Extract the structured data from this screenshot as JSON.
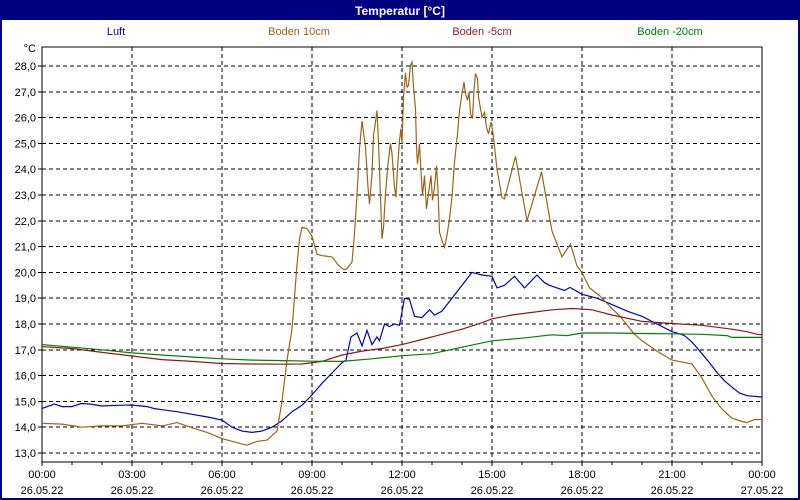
{
  "window": {
    "title": "Temperatur [°C]"
  },
  "colors": {
    "titlebar_bg": "#000080",
    "titlebar_text": "#ffffff",
    "window_border": "#000080",
    "plot_border": "#000000",
    "grid": "#000000",
    "background": "#ffffff"
  },
  "chart_data": {
    "type": "line",
    "title": "Temperatur [°C]",
    "grid": "dashed",
    "legend_position": "top",
    "y_axis": {
      "unit": "°C",
      "min": 13.0,
      "max": 28.0,
      "step": 1.0,
      "tick_labels": [
        "28,0",
        "27,0",
        "26,0",
        "25,0",
        "24,0",
        "23,0",
        "22,0",
        "21,0",
        "20,0",
        "19,0",
        "18,0",
        "17,0",
        "16,0",
        "15,0",
        "14,0",
        "13,0"
      ]
    },
    "x_axis": {
      "end_minutes": 1440,
      "major_step_minutes": 180,
      "minor_step_minutes": 60,
      "major_ticks": [
        {
          "time": "00:00",
          "date": "26.05.22"
        },
        {
          "time": "03:00",
          "date": "26.05.22"
        },
        {
          "time": "06:00",
          "date": "26.05.22"
        },
        {
          "time": "09:00",
          "date": "26.05.22"
        },
        {
          "time": "12:00",
          "date": "26.05.22"
        },
        {
          "time": "15:00",
          "date": "26.05.22"
        },
        {
          "time": "18:00",
          "date": "26.05.22"
        },
        {
          "time": "21:00",
          "date": "26.05.22"
        },
        {
          "time": "00:00",
          "date": "27.05.22"
        }
      ]
    },
    "series": [
      {
        "name": "Luft",
        "color": "#0000cc",
        "points": [
          [
            0,
            14.73
          ],
          [
            25,
            14.9
          ],
          [
            40,
            14.8
          ],
          [
            60,
            14.8
          ],
          [
            78,
            14.92
          ],
          [
            95,
            14.9
          ],
          [
            120,
            14.82
          ],
          [
            150,
            14.85
          ],
          [
            180,
            14.86
          ],
          [
            210,
            14.8
          ],
          [
            225,
            14.72
          ],
          [
            240,
            14.68
          ],
          [
            270,
            14.6
          ],
          [
            300,
            14.5
          ],
          [
            330,
            14.4
          ],
          [
            360,
            14.28
          ],
          [
            380,
            14.0
          ],
          [
            400,
            13.85
          ],
          [
            420,
            13.8
          ],
          [
            440,
            13.85
          ],
          [
            460,
            14.0
          ],
          [
            480,
            14.25
          ],
          [
            500,
            14.6
          ],
          [
            520,
            14.85
          ],
          [
            540,
            15.25
          ],
          [
            560,
            15.7
          ],
          [
            580,
            16.1
          ],
          [
            600,
            16.5
          ],
          [
            608,
            16.6
          ],
          [
            618,
            17.5
          ],
          [
            630,
            17.65
          ],
          [
            640,
            17.15
          ],
          [
            650,
            17.75
          ],
          [
            660,
            17.2
          ],
          [
            670,
            17.5
          ],
          [
            675,
            17.35
          ],
          [
            685,
            18.0
          ],
          [
            695,
            17.9
          ],
          [
            705,
            18.0
          ],
          [
            715,
            17.95
          ],
          [
            725,
            19.0
          ],
          [
            735,
            18.95
          ],
          [
            745,
            18.3
          ],
          [
            760,
            18.25
          ],
          [
            775,
            18.55
          ],
          [
            785,
            18.35
          ],
          [
            800,
            18.5
          ],
          [
            820,
            19.0
          ],
          [
            840,
            19.5
          ],
          [
            860,
            20.0
          ],
          [
            880,
            19.9
          ],
          [
            900,
            19.85
          ],
          [
            910,
            19.4
          ],
          [
            925,
            19.5
          ],
          [
            945,
            19.85
          ],
          [
            965,
            19.4
          ],
          [
            990,
            19.9
          ],
          [
            1005,
            19.6
          ],
          [
            1015,
            19.5
          ],
          [
            1027,
            19.42
          ],
          [
            1045,
            19.3
          ],
          [
            1056,
            19.42
          ],
          [
            1080,
            19.15
          ],
          [
            1110,
            19.0
          ],
          [
            1140,
            18.75
          ],
          [
            1170,
            18.5
          ],
          [
            1200,
            18.3
          ],
          [
            1230,
            18.0
          ],
          [
            1260,
            17.7
          ],
          [
            1275,
            17.62
          ],
          [
            1285,
            17.55
          ],
          [
            1300,
            17.3
          ],
          [
            1320,
            16.85
          ],
          [
            1335,
            16.5
          ],
          [
            1350,
            16.12
          ],
          [
            1365,
            15.8
          ],
          [
            1380,
            15.55
          ],
          [
            1395,
            15.32
          ],
          [
            1410,
            15.22
          ],
          [
            1440,
            15.17
          ]
        ]
      },
      {
        "name": "Boden 10cm",
        "color": "#996619",
        "points": [
          [
            0,
            14.15
          ],
          [
            40,
            14.12
          ],
          [
            80,
            14.0
          ],
          [
            120,
            14.05
          ],
          [
            160,
            14.05
          ],
          [
            200,
            14.15
          ],
          [
            240,
            14.05
          ],
          [
            270,
            14.18
          ],
          [
            300,
            13.98
          ],
          [
            330,
            13.8
          ],
          [
            360,
            13.56
          ],
          [
            390,
            13.4
          ],
          [
            410,
            13.3
          ],
          [
            430,
            13.45
          ],
          [
            450,
            13.5
          ],
          [
            470,
            13.85
          ],
          [
            480,
            15.0
          ],
          [
            490,
            16.6
          ],
          [
            500,
            17.8
          ],
          [
            510,
            20.3
          ],
          [
            515,
            21.3
          ],
          [
            520,
            21.75
          ],
          [
            530,
            21.7
          ],
          [
            540,
            21.4
          ],
          [
            550,
            20.7
          ],
          [
            560,
            20.65
          ],
          [
            580,
            20.6
          ],
          [
            590,
            20.35
          ],
          [
            600,
            20.15
          ],
          [
            605,
            20.1
          ],
          [
            610,
            20.15
          ],
          [
            620,
            20.4
          ],
          [
            625,
            21.5
          ],
          [
            630,
            23.0
          ],
          [
            635,
            24.8
          ],
          [
            640,
            25.87
          ],
          [
            647,
            24.86
          ],
          [
            652,
            23.3
          ],
          [
            655,
            22.65
          ],
          [
            660,
            23.82
          ],
          [
            663,
            25.31
          ],
          [
            667,
            25.83
          ],
          [
            670,
            26.28
          ],
          [
            673,
            25.05
          ],
          [
            677,
            22.92
          ],
          [
            680,
            21.3
          ],
          [
            683,
            21.75
          ],
          [
            687,
            23.05
          ],
          [
            692,
            24.21
          ],
          [
            697,
            25.0
          ],
          [
            700,
            24.6
          ],
          [
            705,
            23.3
          ],
          [
            708,
            22.92
          ],
          [
            711,
            24.02
          ],
          [
            715,
            25.12
          ],
          [
            718,
            25.57
          ],
          [
            720,
            24.98
          ],
          [
            723,
            26.8
          ],
          [
            727,
            27.73
          ],
          [
            730,
            27.18
          ],
          [
            733,
            27.25
          ],
          [
            737,
            28.03
          ],
          [
            740,
            28.15
          ],
          [
            743,
            27.18
          ],
          [
            747,
            26.34
          ],
          [
            749,
            24.86
          ],
          [
            751,
            24.21
          ],
          [
            755,
            24.98
          ],
          [
            759,
            23.56
          ],
          [
            761,
            22.98
          ],
          [
            765,
            23.76
          ],
          [
            769,
            22.46
          ],
          [
            773,
            23.05
          ],
          [
            778,
            23.76
          ],
          [
            781,
            22.79
          ],
          [
            785,
            23.3
          ],
          [
            789,
            24.14
          ],
          [
            792,
            23.18
          ],
          [
            795,
            21.56
          ],
          [
            800,
            21.24
          ],
          [
            805,
            20.98
          ],
          [
            810,
            21.43
          ],
          [
            815,
            22.08
          ],
          [
            820,
            22.92
          ],
          [
            825,
            24.27
          ],
          [
            831,
            25.37
          ],
          [
            835,
            26.28
          ],
          [
            840,
            26.93
          ],
          [
            844,
            27.38
          ],
          [
            847,
            26.93
          ],
          [
            851,
            26.67
          ],
          [
            854,
            27.0
          ],
          [
            857,
            26.15
          ],
          [
            861,
            25.96
          ],
          [
            864,
            27.06
          ],
          [
            867,
            27.71
          ],
          [
            871,
            27.51
          ],
          [
            873,
            26.8
          ],
          [
            877,
            26.34
          ],
          [
            880,
            26.02
          ],
          [
            885,
            26.21
          ],
          [
            889,
            25.63
          ],
          [
            893,
            25.37
          ],
          [
            898,
            25.83
          ],
          [
            902,
            25.4
          ],
          [
            910,
            24.0
          ],
          [
            920,
            22.9
          ],
          [
            925,
            22.85
          ],
          [
            947,
            24.5
          ],
          [
            970,
            22.0
          ],
          [
            999,
            23.9
          ],
          [
            1020,
            21.6
          ],
          [
            1040,
            20.6
          ],
          [
            1057,
            21.1
          ],
          [
            1070,
            20.25
          ],
          [
            1080,
            20.0
          ],
          [
            1095,
            19.4
          ],
          [
            1115,
            19.1
          ],
          [
            1140,
            18.6
          ],
          [
            1156,
            18.3
          ],
          [
            1185,
            17.6
          ],
          [
            1200,
            17.35
          ],
          [
            1230,
            16.95
          ],
          [
            1260,
            16.6
          ],
          [
            1300,
            16.45
          ],
          [
            1320,
            15.9
          ],
          [
            1340,
            15.2
          ],
          [
            1360,
            14.7
          ],
          [
            1380,
            14.35
          ],
          [
            1400,
            14.22
          ],
          [
            1410,
            14.18
          ],
          [
            1425,
            14.3
          ],
          [
            1440,
            14.3
          ]
        ]
      },
      {
        "name": "Boden -5cm",
        "color": "#8f1a1a",
        "points": [
          [
            0,
            17.12
          ],
          [
            60,
            17.05
          ],
          [
            120,
            16.9
          ],
          [
            180,
            16.76
          ],
          [
            240,
            16.62
          ],
          [
            300,
            16.55
          ],
          [
            360,
            16.47
          ],
          [
            420,
            16.45
          ],
          [
            480,
            16.44
          ],
          [
            520,
            16.45
          ],
          [
            560,
            16.55
          ],
          [
            600,
            16.8
          ],
          [
            640,
            16.95
          ],
          [
            680,
            17.05
          ],
          [
            720,
            17.2
          ],
          [
            760,
            17.4
          ],
          [
            800,
            17.6
          ],
          [
            840,
            17.8
          ],
          [
            880,
            18.05
          ],
          [
            900,
            18.2
          ],
          [
            940,
            18.35
          ],
          [
            980,
            18.45
          ],
          [
            1020,
            18.55
          ],
          [
            1060,
            18.6
          ],
          [
            1100,
            18.55
          ],
          [
            1140,
            18.35
          ],
          [
            1200,
            18.1
          ],
          [
            1260,
            18.02
          ],
          [
            1320,
            17.95
          ],
          [
            1380,
            17.8
          ],
          [
            1410,
            17.7
          ],
          [
            1430,
            17.6
          ],
          [
            1440,
            17.58
          ]
        ]
      },
      {
        "name": "Boden -20cm",
        "color": "#008000",
        "points": [
          [
            0,
            17.2
          ],
          [
            60,
            17.1
          ],
          [
            120,
            17.0
          ],
          [
            180,
            16.88
          ],
          [
            240,
            16.8
          ],
          [
            300,
            16.72
          ],
          [
            360,
            16.65
          ],
          [
            420,
            16.6
          ],
          [
            480,
            16.58
          ],
          [
            540,
            16.56
          ],
          [
            600,
            16.55
          ],
          [
            660,
            16.65
          ],
          [
            720,
            16.77
          ],
          [
            780,
            16.85
          ],
          [
            840,
            17.1
          ],
          [
            900,
            17.35
          ],
          [
            960,
            17.45
          ],
          [
            1020,
            17.58
          ],
          [
            1050,
            17.55
          ],
          [
            1080,
            17.65
          ],
          [
            1140,
            17.65
          ],
          [
            1200,
            17.63
          ],
          [
            1260,
            17.62
          ],
          [
            1320,
            17.6
          ],
          [
            1370,
            17.55
          ],
          [
            1380,
            17.48
          ],
          [
            1440,
            17.48
          ]
        ]
      }
    ]
  }
}
